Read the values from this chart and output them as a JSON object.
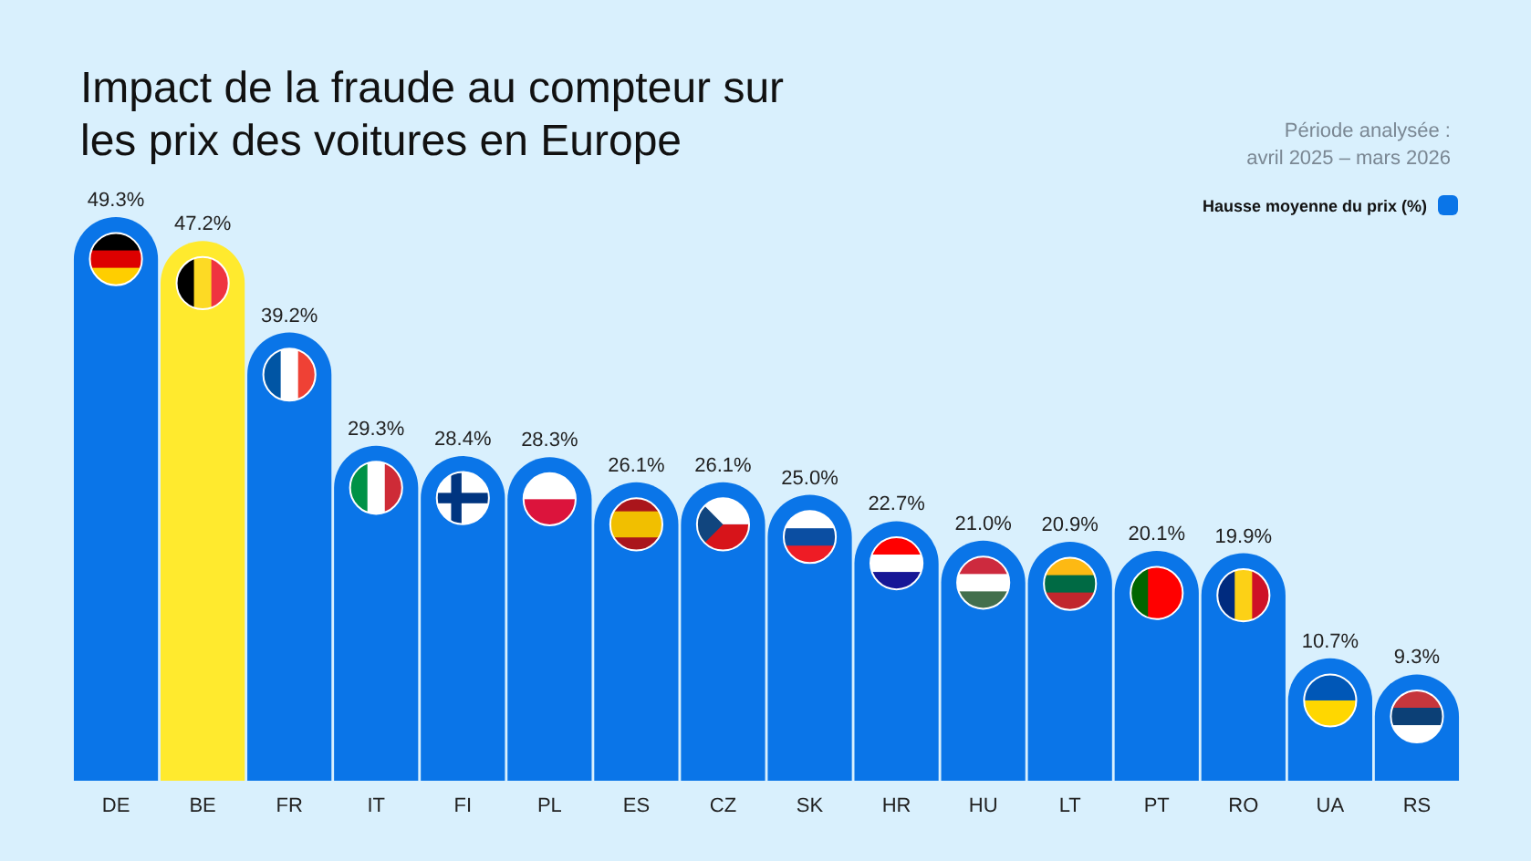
{
  "chart_data": {
    "type": "bar",
    "title": "Impact de la fraude au compteur sur\nles prix des voitures en Europe",
    "subtitle": "Période analysée :\navril 2025 – mars 2026",
    "categories": [
      "DE",
      "BE",
      "FR",
      "IT",
      "FI",
      "PL",
      "ES",
      "CZ",
      "SK",
      "HR",
      "HU",
      "LT",
      "PT",
      "RO",
      "UA",
      "RS"
    ],
    "series": [
      {
        "name": "Hausse moyenne du prix (%)",
        "color": "#0a75e8",
        "colors": [
          "#0a75e8",
          "#ffea2e",
          "#0a75e8",
          "#0a75e8",
          "#0a75e8",
          "#0a75e8",
          "#0a75e8",
          "#0a75e8",
          "#0a75e8",
          "#0a75e8",
          "#0a75e8",
          "#0a75e8",
          "#0a75e8",
          "#0a75e8",
          "#0a75e8",
          "#0a75e8"
        ],
        "values": [
          49.3,
          47.2,
          39.2,
          29.3,
          28.4,
          28.3,
          26.1,
          26.1,
          25.0,
          22.7,
          21.0,
          20.9,
          20.1,
          19.9,
          10.7,
          9.3
        ],
        "value_labels": [
          "49.3%",
          "47.2%",
          "39.2%",
          "29.3%",
          "28.4%",
          "28.3%",
          "26.1%",
          "26.1%",
          "25.0%",
          "22.7%",
          "21.0%",
          "20.9%",
          "20.1%",
          "19.9%",
          "10.7%",
          "9.3%"
        ]
      }
    ],
    "legend": "top right",
    "grid": false
  }
}
